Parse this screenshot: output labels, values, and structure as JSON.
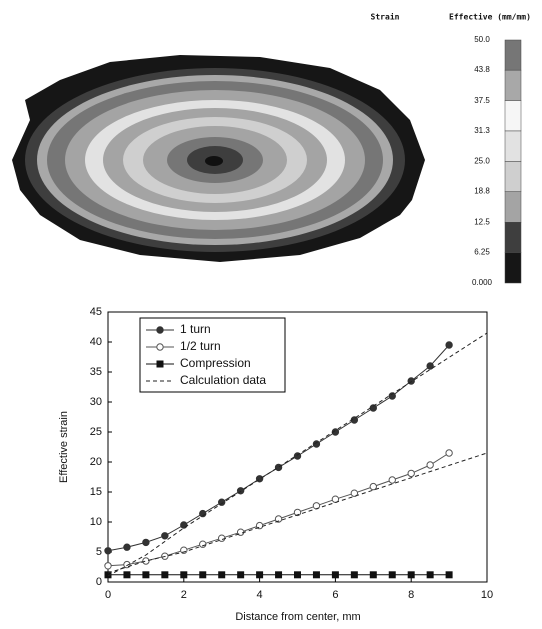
{
  "chart_data": [
    {
      "type": "colorbar",
      "title": "Strain",
      "label": "Effective (mm/mm)",
      "lim": [
        0,
        50
      ],
      "ticks": [
        {
          "value": 0,
          "label": "0.000"
        },
        6.25,
        12.5,
        18.8,
        {
          "value": 25,
          "label": "25.0"
        },
        31.3,
        37.5,
        43.8,
        {
          "value": 50,
          "label": "50.0"
        }
      ],
      "colors": [
        "#161616",
        "#3e3e3e",
        "#a4a4a4",
        "#cfcfcf",
        "#e2e2e2",
        "#f6f6f6",
        "#a8a8a8",
        "#767676"
      ]
    },
    {
      "type": "line",
      "xlabel": "Distance from center, mm",
      "ylabel": "Effective strain",
      "x": [
        0,
        0.5,
        1,
        1.5,
        2,
        2.5,
        3,
        3.5,
        4,
        4.5,
        5,
        5.5,
        6,
        6.5,
        7,
        7.5,
        8,
        8.5,
        9
      ],
      "series": [
        {
          "name": "1 turn",
          "color": "#333333",
          "marker": "circle",
          "fill": true,
          "values": [
            5.2,
            5.8,
            6.6,
            7.7,
            9.5,
            11.4,
            13.3,
            15.2,
            17.2,
            19.1,
            21,
            23,
            25,
            27,
            29,
            31,
            33.5,
            36,
            39.5
          ]
        },
        {
          "name": "1/2 turn",
          "color": "#555555",
          "marker": "circle",
          "fill": false,
          "values": [
            2.7,
            2.9,
            3.5,
            4.3,
            5.3,
            6.3,
            7.3,
            8.3,
            9.4,
            10.5,
            11.6,
            12.7,
            13.8,
            14.8,
            15.9,
            17,
            18.1,
            19.5,
            21.5
          ]
        },
        {
          "name": "Compression",
          "color": "#111111",
          "marker": "square",
          "fill": true,
          "values": [
            1.2,
            1.2,
            1.2,
            1.2,
            1.2,
            1.2,
            1.2,
            1.2,
            1.2,
            1.2,
            1.2,
            1.2,
            1.2,
            1.2,
            1.2,
            1.2,
            1.2,
            1.2,
            1.2
          ]
        },
        {
          "name": "Calculation data",
          "color": "#222222",
          "dash": "4 3",
          "x": [
            0,
            1,
            2,
            10,
            0,
            0,
            1,
            2,
            10
          ],
          "values": [
            1,
            4.5,
            9,
            41.5,
            null,
            1.5,
            3.5,
            5,
            21.5
          ]
        }
      ],
      "xlim": [
        0,
        10
      ],
      "xticks": [
        0,
        2,
        4,
        6,
        8,
        10
      ],
      "ylim": [
        0,
        45
      ],
      "yticks": [
        0,
        5,
        10,
        15,
        20,
        25,
        30,
        35,
        40,
        45
      ],
      "legend": "upper-left"
    }
  ]
}
